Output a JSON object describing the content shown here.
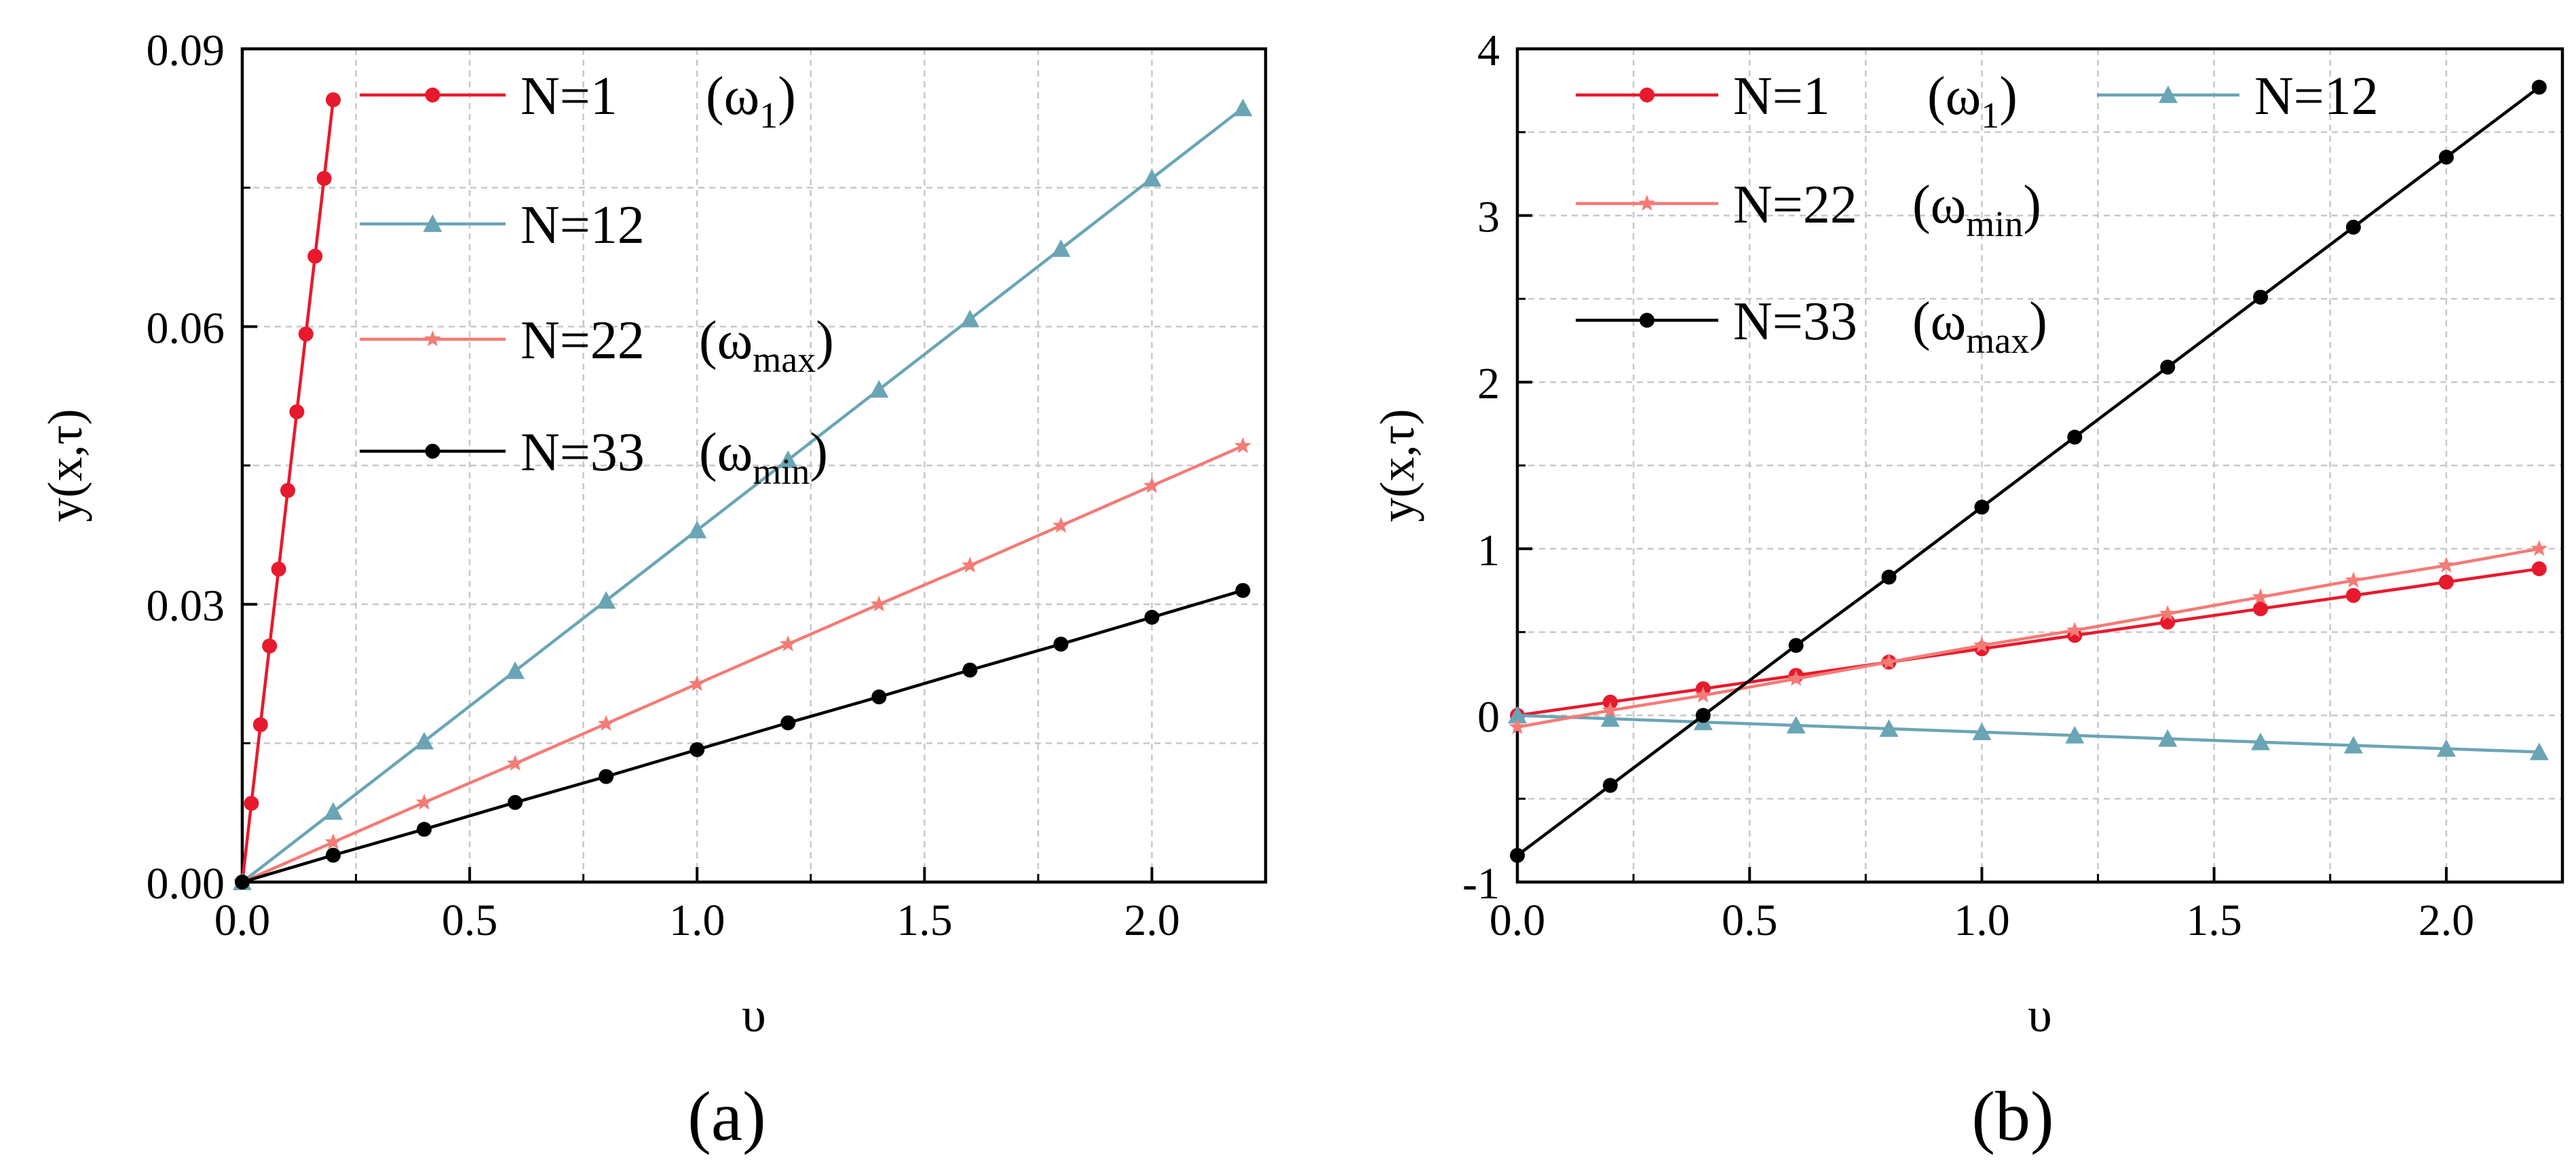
{
  "chart_data": [
    {
      "type": "line",
      "panel_label": "(a)",
      "xlabel": "υ",
      "ylabel": "y(x,τ)",
      "xlim": [
        0,
        2.25
      ],
      "ylim": [
        0,
        0.09
      ],
      "xticks": [
        0.0,
        0.5,
        1.0,
        1.5,
        2.0
      ],
      "xtick_labels": [
        "0.0",
        "0.5",
        "1.0",
        "1.5",
        "2.0"
      ],
      "yticks": [
        0.0,
        0.03,
        0.06,
        0.09
      ],
      "ytick_labels": [
        "0.00",
        "0.03",
        "0.06",
        "0.09"
      ],
      "grid": true,
      "legend_position": "top-left",
      "series": [
        {
          "name": "N=1",
          "legend_main": "N=1",
          "legend_omega": "(ω",
          "legend_sub": "1",
          "legend_close": ")",
          "color": "#e8192c",
          "marker": "circle",
          "x": [
            0,
            0.02,
            0.04,
            0.06,
            0.08,
            0.1,
            0.12,
            0.14,
            0.16,
            0.18,
            0.2
          ],
          "y": [
            0,
            0.0085,
            0.017,
            0.0255,
            0.0338,
            0.0423,
            0.0508,
            0.0592,
            0.0676,
            0.076,
            0.0845
          ]
        },
        {
          "name": "N=12",
          "legend_main": "N=12",
          "legend_omega": "",
          "legend_sub": "",
          "legend_close": "",
          "color": "#6aa5b5",
          "marker": "triangle",
          "x": [
            0,
            0.2,
            0.4,
            0.6,
            0.8,
            1.0,
            1.2,
            1.4,
            1.6,
            1.8,
            2.0,
            2.2
          ],
          "y": [
            0,
            0.0076,
            0.0152,
            0.0228,
            0.0304,
            0.038,
            0.0456,
            0.0532,
            0.0608,
            0.0684,
            0.076,
            0.0836
          ]
        },
        {
          "name": "N=22",
          "legend_main": "N=22",
          "legend_omega": "(ω",
          "legend_sub": "max",
          "legend_close": ")",
          "color": "#f47b76",
          "marker": "star",
          "x": [
            0,
            0.2,
            0.4,
            0.6,
            0.8,
            1.0,
            1.2,
            1.4,
            1.6,
            1.8,
            2.0,
            2.2
          ],
          "y": [
            0,
            0.0043,
            0.0086,
            0.0128,
            0.0171,
            0.0214,
            0.0257,
            0.03,
            0.0342,
            0.0385,
            0.0428,
            0.0471
          ]
        },
        {
          "name": "N=33",
          "legend_main": "N=33",
          "legend_omega": "(ω",
          "legend_sub": "min",
          "legend_close": ")",
          "color": "#000000",
          "marker": "circle",
          "x": [
            0,
            0.2,
            0.4,
            0.6,
            0.8,
            1.0,
            1.2,
            1.4,
            1.6,
            1.8,
            2.0,
            2.2
          ],
          "y": [
            0,
            0.0029,
            0.0057,
            0.0086,
            0.0114,
            0.0143,
            0.0172,
            0.02,
            0.0229,
            0.0257,
            0.0286,
            0.0315
          ]
        }
      ]
    },
    {
      "type": "line",
      "panel_label": "(b)",
      "xlabel": "υ",
      "ylabel": "y(x,τ)",
      "xlim": [
        0,
        2.25
      ],
      "ylim": [
        -1,
        4
      ],
      "xticks": [
        0.0,
        0.5,
        1.0,
        1.5,
        2.0
      ],
      "xtick_labels": [
        "0.0",
        "0.5",
        "1.0",
        "1.5",
        "2.0"
      ],
      "yticks": [
        -1,
        0,
        1,
        2,
        3,
        4
      ],
      "ytick_labels": [
        "-1",
        "0",
        "1",
        "2",
        "3",
        "4"
      ],
      "grid": true,
      "legend_position": "top-left",
      "series": [
        {
          "name": "N=1",
          "legend_main": "N=1",
          "legend_omega": "(ω",
          "legend_sub": "1",
          "legend_close": ")",
          "color": "#e8192c",
          "marker": "circle",
          "x": [
            0,
            0.2,
            0.4,
            0.6,
            0.8,
            1.0,
            1.2,
            1.4,
            1.6,
            1.8,
            2.0,
            2.2
          ],
          "y": [
            0.0,
            0.08,
            0.16,
            0.24,
            0.32,
            0.4,
            0.48,
            0.56,
            0.64,
            0.72,
            0.8,
            0.88
          ]
        },
        {
          "name": "N=12",
          "legend_main": "N=12",
          "legend_omega": "",
          "legend_sub": "",
          "legend_close": "",
          "color": "#6aa5b5",
          "marker": "triangle",
          "x": [
            0,
            0.2,
            0.4,
            0.6,
            0.8,
            1.0,
            1.2,
            1.4,
            1.6,
            1.8,
            2.0,
            2.2
          ],
          "y": [
            0.0,
            -0.02,
            -0.04,
            -0.06,
            -0.08,
            -0.1,
            -0.12,
            -0.14,
            -0.16,
            -0.18,
            -0.2,
            -0.22
          ]
        },
        {
          "name": "N=22",
          "legend_main": "N=22",
          "legend_omega": "(ω",
          "legend_sub": "min",
          "legend_close": ")",
          "color": "#f47b76",
          "marker": "star",
          "x": [
            0,
            0.2,
            0.4,
            0.6,
            0.8,
            1.0,
            1.2,
            1.4,
            1.6,
            1.8,
            2.0,
            2.2
          ],
          "y": [
            -0.07,
            0.03,
            0.12,
            0.22,
            0.32,
            0.42,
            0.51,
            0.61,
            0.71,
            0.81,
            0.9,
            1.0
          ]
        },
        {
          "name": "N=33",
          "legend_main": "N=33",
          "legend_omega": "(ω",
          "legend_sub": "max",
          "legend_close": ")",
          "color": "#000000",
          "marker": "circle",
          "x": [
            0,
            0.2,
            0.4,
            0.6,
            0.8,
            1.0,
            1.2,
            1.4,
            1.6,
            1.8,
            2.0,
            2.2
          ],
          "y": [
            -0.84,
            -0.42,
            0.0,
            0.42,
            0.83,
            1.25,
            1.67,
            2.09,
            2.51,
            2.93,
            3.35,
            3.77
          ]
        }
      ]
    }
  ]
}
